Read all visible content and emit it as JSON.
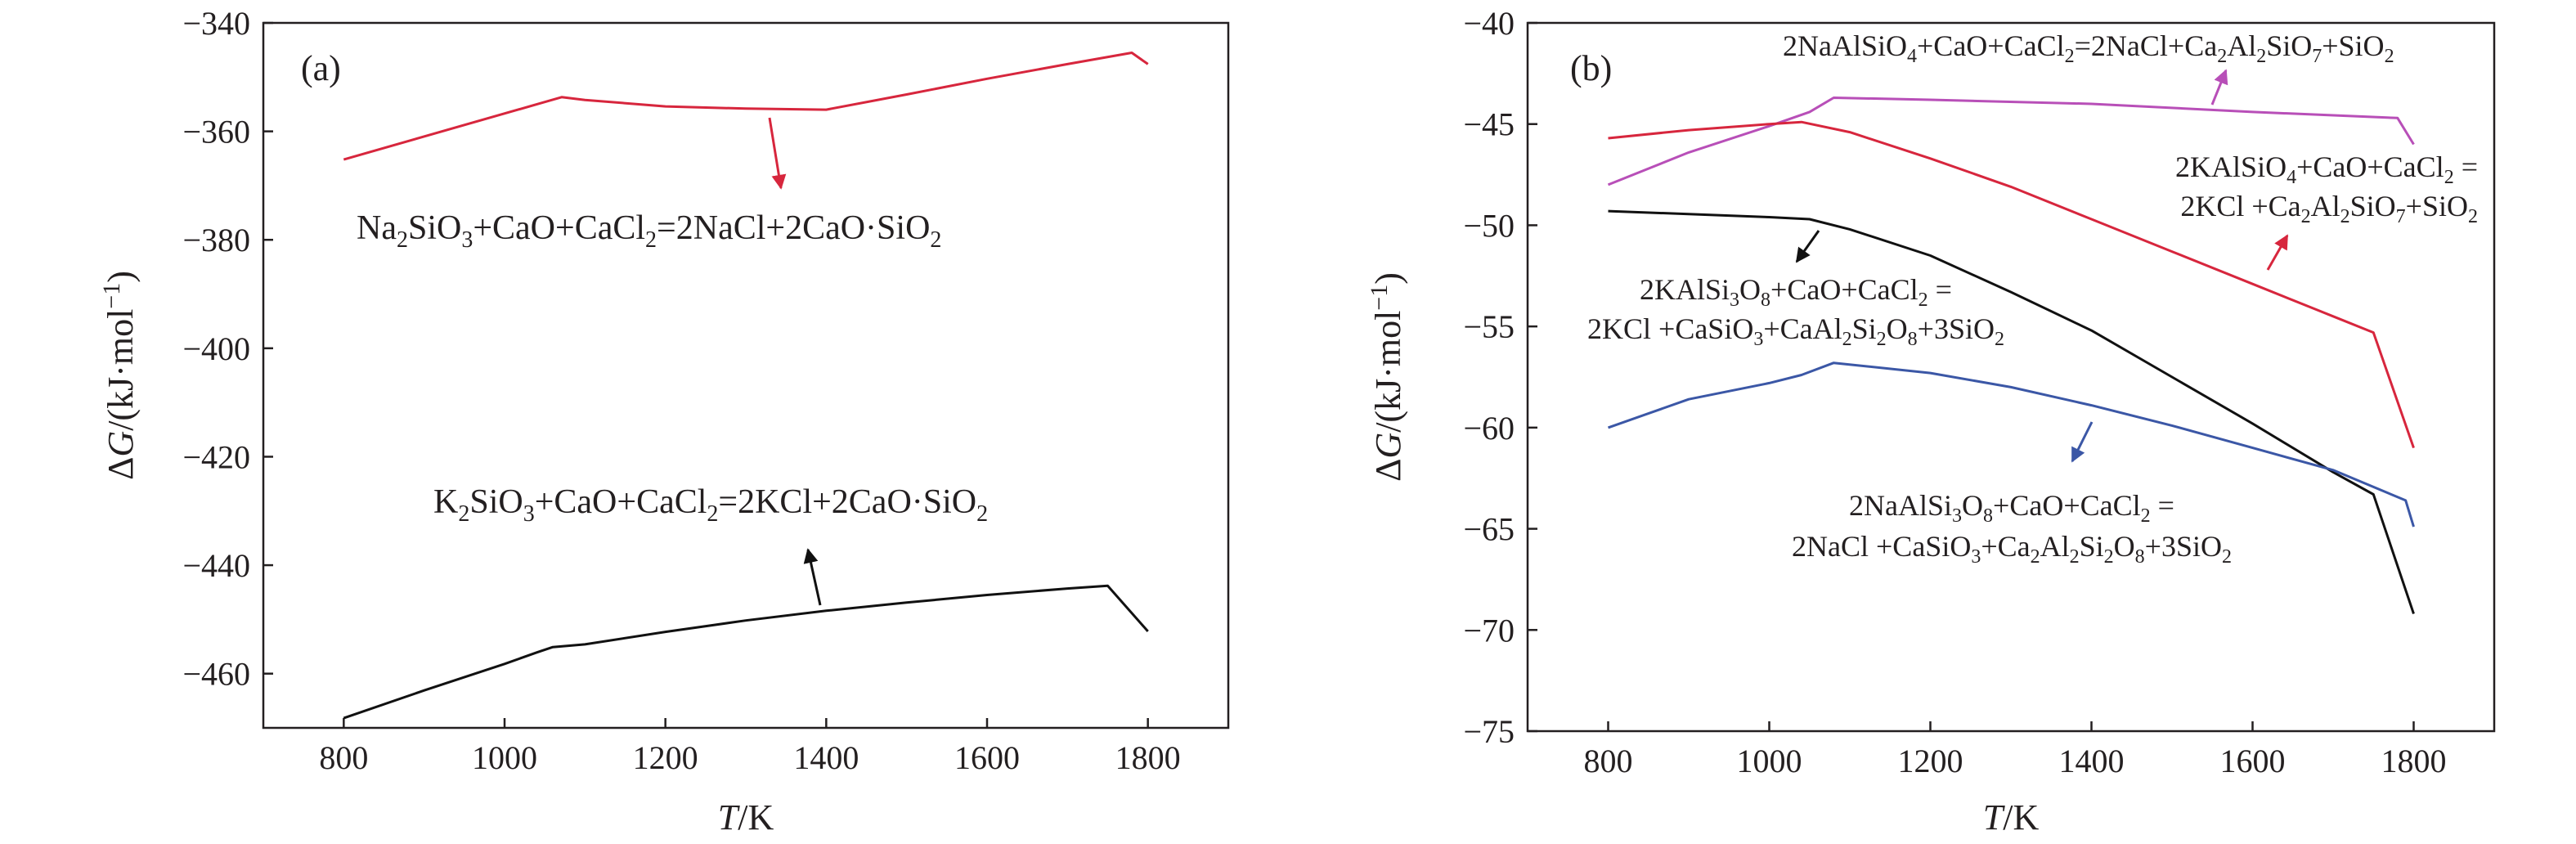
{
  "chart_data": [
    {
      "type": "line",
      "panel_label": "(a)",
      "xlabel": "T/K",
      "ylabel": "ΔG/(kJ·mol⁻¹)",
      "xlim": [
        700,
        1900
      ],
      "ylim": [
        -470,
        -340
      ],
      "xticks": [
        800,
        1000,
        1200,
        1400,
        1600,
        1800
      ],
      "yticks": [
        -340,
        -360,
        -380,
        -400,
        -420,
        -440,
        -460
      ],
      "series": [
        {
          "color": "#d7263d",
          "x": [
            800,
            1071,
            1100,
            1200,
            1300,
            1400,
            1500,
            1600,
            1700,
            1780,
            1800
          ],
          "y": [
            -365.2,
            -353.7,
            -354.2,
            -355.4,
            -355.8,
            -356.0,
            -353.2,
            -350.3,
            -347.6,
            -345.5,
            -347.6
          ]
        },
        {
          "color": "#111111",
          "x": [
            800,
            900,
            1000,
            1040,
            1060,
            1100,
            1200,
            1300,
            1400,
            1500,
            1600,
            1700,
            1750,
            1800
          ],
          "y": [
            -468.2,
            -463.1,
            -458.2,
            -456.1,
            -455.1,
            -454.6,
            -452.3,
            -450.2,
            -448.4,
            -446.9,
            -445.5,
            -444.3,
            -443.8,
            -452.2
          ]
        }
      ],
      "annotations": [
        {
          "text": "Na₂SiO₃+CaO+CaCl₂=2NaCl+2CaO·SiO₂",
          "arrow_color": "#d7263d"
        },
        {
          "text": "K₂SiO₃+CaO+CaCl₂=2KCl+2CaO·SiO₂",
          "arrow_color": "#111111"
        }
      ]
    },
    {
      "type": "line",
      "panel_label": "(b)",
      "xlabel": "T/K",
      "ylabel": "ΔG/(kJ·mol⁻¹)",
      "xlim": [
        700,
        1900
      ],
      "ylim": [
        -75,
        -40
      ],
      "xticks": [
        800,
        1000,
        1200,
        1400,
        1600,
        1800
      ],
      "yticks": [
        -40,
        -45,
        -50,
        -55,
        -60,
        -65,
        -70,
        -75
      ],
      "series": [
        {
          "color": "#b84fb8",
          "x": [
            800,
            900,
            1000,
            1050,
            1080,
            1200,
            1400,
            1600,
            1780,
            1800
          ],
          "y": [
            -48.0,
            -46.4,
            -45.1,
            -44.4,
            -43.7,
            -43.8,
            -44.0,
            -44.4,
            -44.7,
            -46.0
          ]
        },
        {
          "color": "#d7263d",
          "x": [
            800,
            900,
            1000,
            1040,
            1100,
            1200,
            1300,
            1400,
            1500,
            1600,
            1700,
            1750,
            1800
          ],
          "y": [
            -45.7,
            -45.3,
            -45.0,
            -44.9,
            -45.4,
            -46.7,
            -48.1,
            -49.7,
            -51.3,
            -52.9,
            -54.5,
            -55.3,
            -61.0
          ]
        },
        {
          "color": "#111111",
          "x": [
            800,
            1000,
            1050,
            1100,
            1200,
            1300,
            1400,
            1500,
            1600,
            1700,
            1750,
            1800
          ],
          "y": [
            -49.3,
            -49.6,
            -49.7,
            -50.2,
            -51.5,
            -53.3,
            -55.2,
            -57.5,
            -59.8,
            -62.2,
            -63.3,
            -69.2
          ]
        },
        {
          "color": "#3b57a6",
          "x": [
            800,
            900,
            1000,
            1040,
            1080,
            1200,
            1300,
            1400,
            1500,
            1600,
            1700,
            1790,
            1800
          ],
          "y": [
            -60.0,
            -58.6,
            -57.8,
            -57.4,
            -56.8,
            -57.3,
            -58.0,
            -58.9,
            -59.9,
            -61.0,
            -62.1,
            -63.6,
            -64.9
          ]
        }
      ],
      "annotations": [
        {
          "text": "2NaAlSiO₄+CaO+CaCl₂=2NaCl+Ca₂Al₂SiO₇+SiO₂",
          "arrow_color": "#b84fb8"
        },
        {
          "line1": "2KAlSiO₄+CaO+CaCl₂ =",
          "line2": "2KCl +Ca₂Al₂SiO₇+SiO₂",
          "arrow_color": "#d7263d"
        },
        {
          "line1": "2KAlSi₃O₈+CaO+CaCl₂ =",
          "line2": "2KCl +CaSiO₃+CaAl₂Si₂O₈+3SiO₂",
          "arrow_color": "#111111"
        },
        {
          "line1": "2NaAlSi₃O₈+CaO+CaCl₂ =",
          "line2": "2NaCl +CaSiO₃+Ca₂Al₂Si₂O₈+3SiO₂",
          "arrow_color": "#3b57a6"
        }
      ]
    }
  ]
}
